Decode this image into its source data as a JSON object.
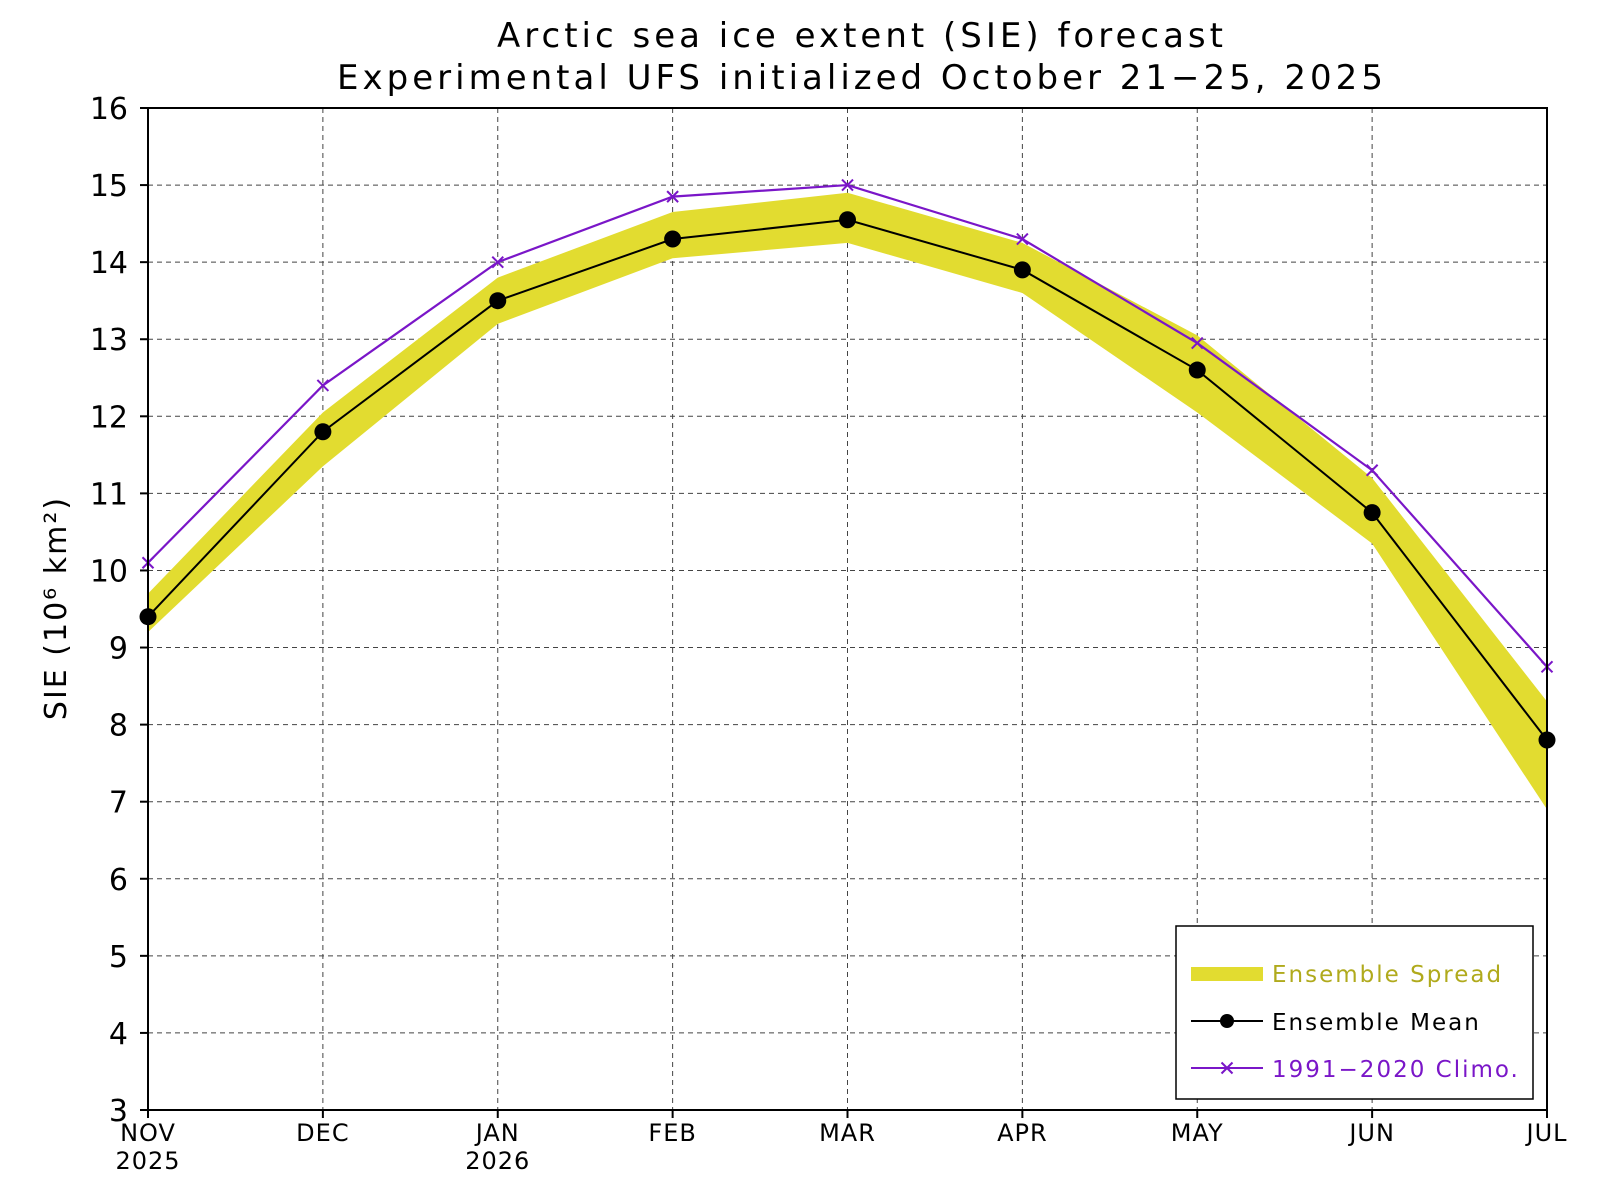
{
  "chart_data": {
    "type": "line",
    "title": "Arctic sea ice extent (SIE) forecast",
    "subtitle": "Experimental UFS initialized October 21−25, 2025",
    "ylabel": "SIE (10⁶ km²)",
    "xlabel": "",
    "ylim": [
      3,
      16
    ],
    "yticks": [
      "3",
      "4",
      "5",
      "6",
      "7",
      "8",
      "9",
      "10",
      "11",
      "12",
      "13",
      "14",
      "15",
      "16"
    ],
    "categories": [
      "NOV",
      "DEC",
      "JAN",
      "FEB",
      "MAR",
      "APR",
      "MAY",
      "JUN",
      "JUL"
    ],
    "category_years": [
      "2025",
      "",
      "2026",
      "",
      "",
      "",
      "",
      "",
      ""
    ],
    "grid": true,
    "legend_position": "bottom-right",
    "series": [
      {
        "name": "Ensemble Spread",
        "kind": "band",
        "color": "#e2dc30",
        "text_color": "#b0aa1c",
        "lower": [
          9.2,
          11.35,
          13.2,
          14.05,
          14.25,
          13.6,
          12.05,
          10.35,
          6.9
        ],
        "upper": [
          9.7,
          12.05,
          13.8,
          14.65,
          14.9,
          14.25,
          13.05,
          11.2,
          8.3
        ]
      },
      {
        "name": "Ensemble Mean",
        "kind": "line",
        "marker": "circle",
        "color": "#000000",
        "values": [
          9.4,
          11.8,
          13.5,
          14.3,
          14.55,
          13.9,
          12.6,
          10.75,
          7.8
        ]
      },
      {
        "name": "1991−2020 Climo.",
        "kind": "line",
        "marker": "x",
        "color": "#7a16c8",
        "values": [
          10.1,
          12.4,
          14.0,
          14.85,
          15.0,
          14.3,
          12.95,
          11.3,
          8.75
        ]
      }
    ]
  }
}
